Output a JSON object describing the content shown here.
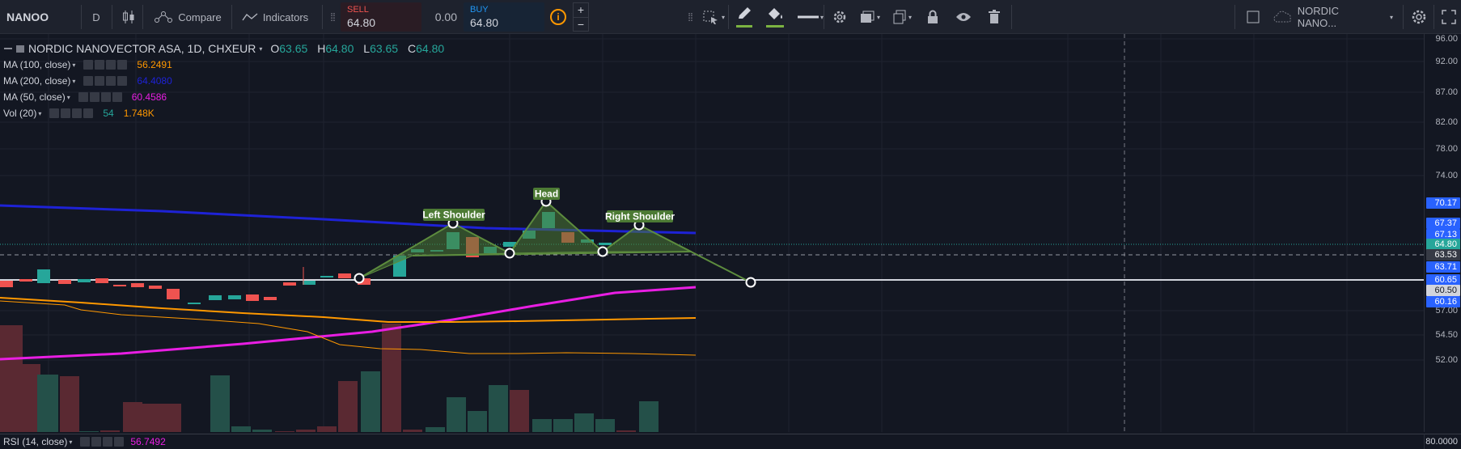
{
  "toolbar": {
    "symbol": "NANOO",
    "interval": "D",
    "compare_label": "Compare",
    "indicators_label": "Indicators",
    "sell_label": "SELL",
    "sell_price": "64.80",
    "spread": "0.00",
    "buy_label": "BUY",
    "buy_price": "64.80",
    "info_icon": "i",
    "plus": "+",
    "minus": "−",
    "right_symbol": "NORDIC NANO..."
  },
  "legend": {
    "title": "NORDIC NANOVECTOR ASA, 1D, CHXEUR",
    "ohlc": {
      "o_label": "O",
      "o": "63.65",
      "h_label": "H",
      "h": "64.80",
      "l_label": "L",
      "l": "63.65",
      "c_label": "C",
      "c": "64.80"
    },
    "indicators": [
      {
        "name": "MA (100, close)",
        "value": "56.2491",
        "value2": "",
        "color": "#ff9800"
      },
      {
        "name": "MA (200, close)",
        "value": "64.4080",
        "value2": "",
        "color": "#1e22d6"
      },
      {
        "name": "MA (50, close)",
        "value": "60.4586",
        "value2": "",
        "color": "#e91ee3"
      },
      {
        "name": "Vol (20)",
        "value": "54",
        "value2": "1.748K",
        "color": "#26a69a",
        "color2": "#ff9800"
      }
    ]
  },
  "pattern_labels": {
    "left": "Left Shoulder",
    "head": "Head",
    "right": "Right Shoulder"
  },
  "price_axis": {
    "ticks": [
      "96.00",
      "92.00",
      "87.00",
      "82.00",
      "78.00",
      "74.00",
      "57.00",
      "54.50",
      "52.00"
    ],
    "tags": [
      {
        "text": "70.17",
        "color": "#2962ff"
      },
      {
        "text": "67.37",
        "color": "#2962ff"
      },
      {
        "text": "67.13",
        "color": "#2962ff"
      },
      {
        "text": "64.80",
        "color": "#26a69a"
      },
      {
        "text": "63.53",
        "color": "#363a45"
      },
      {
        "text": "63.71",
        "color": "#2962ff"
      },
      {
        "text": "60.65",
        "color": "#2962ff"
      },
      {
        "text": "60.50",
        "color": "#d1d4dc"
      },
      {
        "text": "60.16",
        "color": "#2962ff"
      }
    ]
  },
  "rsi": {
    "name": "RSI (14, close)",
    "value": "56.7492",
    "axis_value": "80.0000"
  },
  "colors": {
    "up": "#26a69a",
    "down": "#ef5350",
    "ma100": "#ff9800",
    "ma200": "#1e22d6",
    "ma50": "#e91ee3",
    "pattern": "#4c7a34"
  }
}
